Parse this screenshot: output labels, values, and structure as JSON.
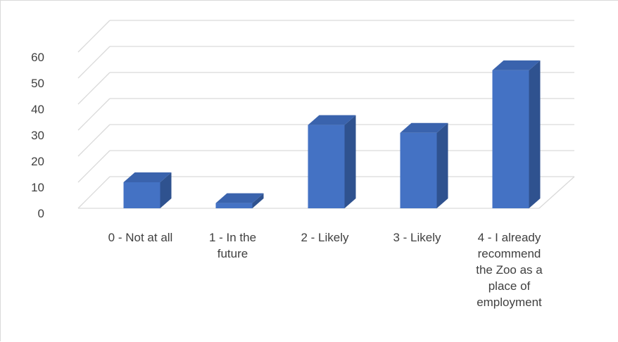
{
  "chart_data": {
    "type": "bar",
    "style": "3d-column",
    "categories": [
      [
        "0 - Not at all"
      ],
      [
        "1 - In the",
        "future"
      ],
      [
        "2 - Likely"
      ],
      [
        "3 - Likely"
      ],
      [
        "4 - I already",
        "recommend",
        "the Zoo as a",
        "place of",
        "employment"
      ]
    ],
    "values": [
      10,
      2,
      32,
      29,
      53
    ],
    "ylim": [
      0,
      60
    ],
    "yticks": [
      0,
      10,
      20,
      30,
      40,
      50,
      60
    ],
    "grid": true,
    "legend": "none",
    "colors": {
      "front": "#4472c4",
      "side": "#2f528f",
      "top": "#3a63ad",
      "grid": "#d9d9d9",
      "text": "#404040"
    }
  }
}
